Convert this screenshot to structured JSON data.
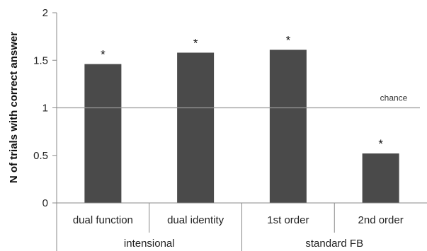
{
  "chart_data": {
    "type": "bar",
    "title": "",
    "ylabel": "N of trials with correct answer",
    "ylim": [
      0,
      2
    ],
    "yticks": [
      "0",
      "0.5",
      "1",
      "1.5",
      "2"
    ],
    "categories": [
      "dual function",
      "dual identity",
      "1st order",
      "2nd order"
    ],
    "groups": [
      {
        "label": "intensional",
        "categories": [
          "dual function",
          "dual identity"
        ]
      },
      {
        "label": "standard FB",
        "categories": [
          "1st order",
          "2nd order"
        ]
      }
    ],
    "values": [
      1.46,
      1.58,
      1.61,
      0.52
    ],
    "annotations": [
      "*",
      "*",
      "*",
      "*"
    ],
    "reference_line": {
      "value": 1,
      "label": "chance"
    },
    "bar_color": "#4a4a4a",
    "line_color": "#999999",
    "grid": false,
    "legend": "none"
  }
}
